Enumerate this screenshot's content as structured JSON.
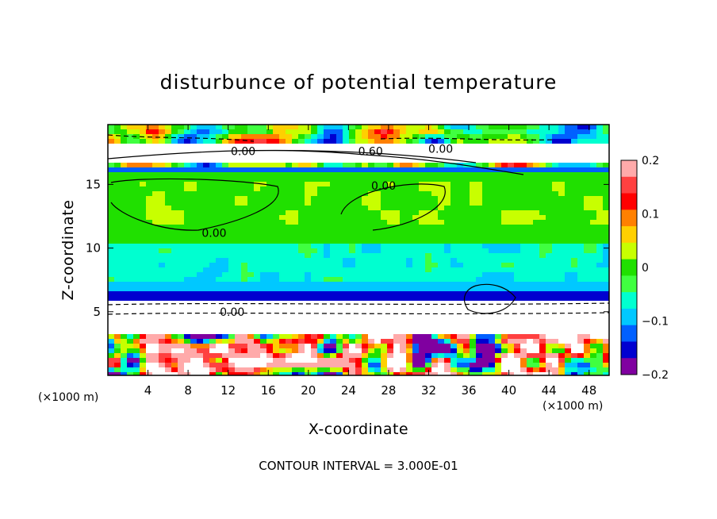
{
  "chart_data": {
    "type": "heatmap",
    "title": "disturbunce of potential temperature",
    "xlabel": "X-coordinate",
    "ylabel": "Z-coordinate",
    "x_unit": "(×1000 m)",
    "z_unit": "(×1000 m)",
    "x_ticks": [
      4,
      8,
      12,
      16,
      20,
      24,
      28,
      32,
      36,
      40,
      44,
      48
    ],
    "z_ticks": [
      5,
      10,
      15
    ],
    "xlim": [
      0,
      50
    ],
    "zlim": [
      0,
      19.7
    ],
    "colorbar": {
      "range": [
        -0.2,
        0.2
      ],
      "tick_values": [
        0.2,
        0.1,
        0,
        -0.1,
        -0.2
      ],
      "tick_labels": [
        "0.2",
        "0.1",
        "0",
        "−0.1",
        "−0.2"
      ],
      "colors": [
        "#ffaaaa",
        "#ff4040",
        "#ff0000",
        "#ff8000",
        "#ffd000",
        "#c8ff00",
        "#20e000",
        "#40ff40",
        "#00ffd0",
        "#00c8ff",
        "#0060ff",
        "#0000d0",
        "#8000a0"
      ]
    },
    "contour_labels": [
      {
        "text": "0.00",
        "x": 13.5,
        "z": 17.6
      },
      {
        "text": "0.60",
        "x": 26.2,
        "z": 17.6
      },
      {
        "text": "0.00",
        "x": 33.2,
        "z": 17.8
      },
      {
        "text": "0.00",
        "x": 27.5,
        "z": 14.9
      },
      {
        "text": "0.00",
        "x": 10.6,
        "z": 11.2
      },
      {
        "text": "0.00",
        "x": 12.4,
        "z": 5.0
      }
    ],
    "contour_interval": "CONTOUR INTERVAL = 3.000E-01"
  }
}
